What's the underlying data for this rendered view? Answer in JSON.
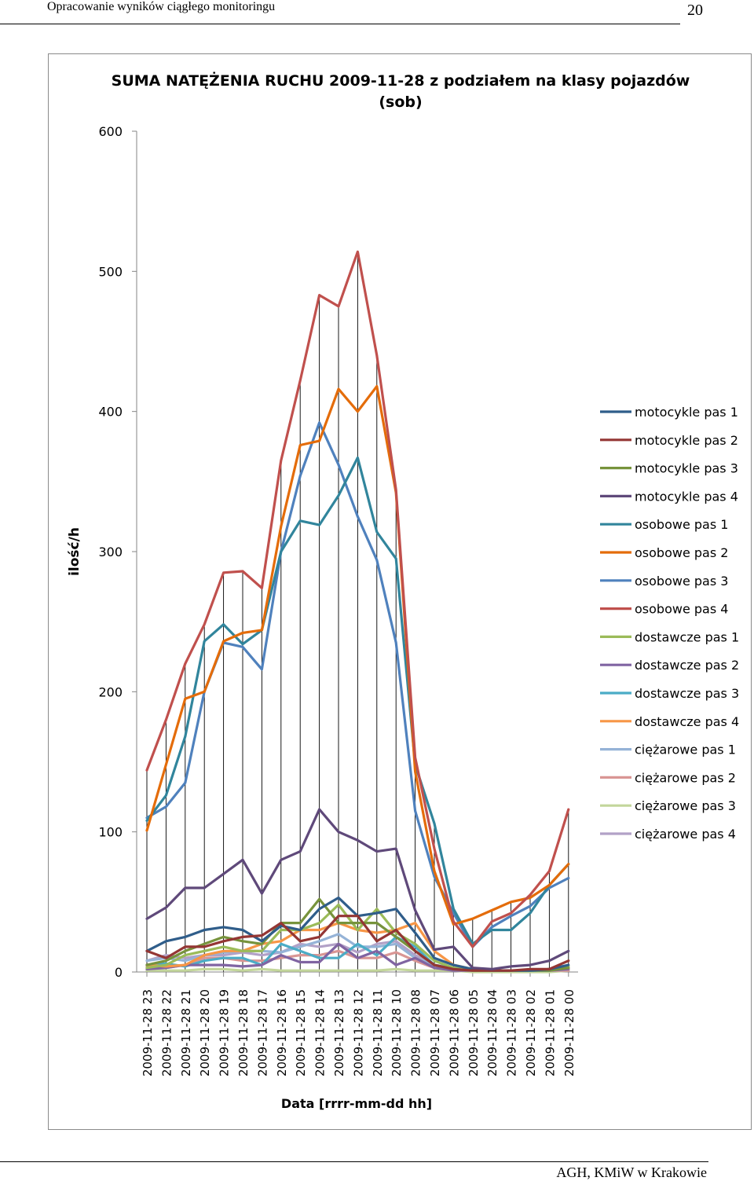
{
  "page": {
    "header_title": "Opracowanie wyników ciągłego monitoringu",
    "page_number": "20",
    "footer": "AGH, KMiW w Krakowie"
  },
  "chart_data": {
    "type": "line",
    "title": "SUMA NATĘŻENIA RUCHU 2009-11-28 z podziałem na klasy pojazdów",
    "subtitle": "(sob)",
    "xlabel": "Data [rrrr-mm-dd hh]",
    "ylabel": "ilość/h",
    "ylim": [
      0,
      600
    ],
    "yticks": [
      0,
      100,
      200,
      300,
      400,
      500,
      600
    ],
    "grid": false,
    "vertical_drop_lines": true,
    "legend_position": "right",
    "categories": [
      "2009-11-28 23",
      "2009-11-28 22",
      "2009-11-28 21",
      "2009-11-28 20",
      "2009-11-28 19",
      "2009-11-28 18",
      "2009-11-28 17",
      "2009-11-28 16",
      "2009-11-28 15",
      "2009-11-28 14",
      "2009-11-28 13",
      "2009-11-28 12",
      "2009-11-28 11",
      "2009-11-28 10",
      "2009-11-28 08",
      "2009-11-28 07",
      "2009-11-28 06",
      "2009-11-28 05",
      "2009-11-28 04",
      "2009-11-28 03",
      "2009-11-28 02",
      "2009-11-28 01",
      "2009-11-28 00"
    ],
    "series": [
      {
        "name": "motocykle pas 1",
        "color": "#2f5d8a",
        "values": [
          15,
          22,
          25,
          30,
          32,
          30,
          22,
          33,
          30,
          45,
          53,
          40,
          42,
          45,
          28,
          10,
          5,
          2,
          1,
          1,
          1,
          2,
          5
        ]
      },
      {
        "name": "motocykle pas 2",
        "color": "#943634",
        "values": [
          15,
          10,
          18,
          18,
          22,
          25,
          26,
          35,
          22,
          25,
          40,
          40,
          22,
          30,
          15,
          5,
          2,
          1,
          1,
          1,
          2,
          2,
          8
        ]
      },
      {
        "name": "motocykle pas 3",
        "color": "#77933c",
        "values": [
          5,
          8,
          15,
          20,
          25,
          22,
          20,
          35,
          35,
          52,
          35,
          35,
          35,
          25,
          15,
          5,
          2,
          1,
          1,
          1,
          1,
          1,
          3
        ]
      },
      {
        "name": "motocykle pas 4",
        "color": "#5f497a",
        "values": [
          38,
          46,
          60,
          60,
          70,
          80,
          56,
          80,
          86,
          116,
          100,
          94,
          86,
          88,
          44,
          16,
          18,
          3,
          2,
          4,
          5,
          8,
          15
        ]
      },
      {
        "name": "osobowe pas 1",
        "color": "#31859c",
        "values": [
          108,
          126,
          168,
          236,
          248,
          234,
          244,
          300,
          322,
          319,
          340,
          367,
          314,
          295,
          148,
          106,
          45,
          20,
          30,
          30,
          42,
          62,
          77
        ]
      },
      {
        "name": "osobowe pas 2",
        "color": "#e46c0a",
        "values": [
          101,
          148,
          195,
          200,
          236,
          242,
          244,
          318,
          376,
          379,
          416,
          400,
          418,
          342,
          143,
          72,
          34,
          38,
          44,
          50,
          53,
          62,
          77
        ]
      },
      {
        "name": "osobowe pas 3",
        "color": "#4f81bd",
        "values": [
          110,
          118,
          135,
          200,
          235,
          232,
          216,
          300,
          354,
          392,
          362,
          325,
          294,
          235,
          115,
          68,
          42,
          18,
          32,
          40,
          47,
          60,
          67
        ]
      },
      {
        "name": "osobowe pas 4",
        "color": "#c0504d",
        "values": [
          144,
          180,
          220,
          248,
          285,
          286,
          274,
          365,
          422,
          483,
          475,
          514,
          440,
          344,
          153,
          88,
          36,
          18,
          36,
          42,
          55,
          72,
          116
        ]
      },
      {
        "name": "dostawcze pas 1",
        "color": "#9bbb59",
        "values": [
          3,
          5,
          12,
          15,
          18,
          15,
          15,
          30,
          30,
          35,
          48,
          30,
          45,
          28,
          20,
          8,
          3,
          1,
          1,
          1,
          1,
          2,
          4
        ]
      },
      {
        "name": "dostawcze pas 2",
        "color": "#8064a2",
        "values": [
          2,
          3,
          5,
          5,
          5,
          4,
          5,
          12,
          7,
          7,
          20,
          10,
          15,
          5,
          10,
          3,
          1,
          1,
          1,
          1,
          1,
          1,
          2
        ]
      },
      {
        "name": "dostawcze pas 3",
        "color": "#4bacc6",
        "values": [
          5,
          6,
          4,
          8,
          10,
          10,
          5,
          20,
          15,
          10,
          10,
          20,
          12,
          25,
          18,
          5,
          2,
          1,
          1,
          1,
          1,
          1,
          3
        ]
      },
      {
        "name": "dostawcze pas 4",
        "color": "#f79646",
        "values": [
          5,
          4,
          5,
          12,
          15,
          15,
          20,
          22,
          30,
          30,
          35,
          30,
          28,
          30,
          35,
          15,
          5,
          2,
          1,
          1,
          1,
          2,
          3
        ]
      },
      {
        "name": "ciężarowe pas 1",
        "color": "#95b3d7",
        "values": [
          8,
          10,
          8,
          12,
          14,
          15,
          15,
          14,
          18,
          22,
          27,
          18,
          18,
          20,
          10,
          5,
          3,
          1,
          1,
          1,
          1,
          1,
          2
        ]
      },
      {
        "name": "ciężarowe pas 2",
        "color": "#d99694",
        "values": [
          4,
          3,
          5,
          10,
          10,
          8,
          8,
          10,
          12,
          12,
          15,
          10,
          10,
          14,
          8,
          3,
          1,
          1,
          1,
          1,
          1,
          1,
          1
        ]
      },
      {
        "name": "ciężarowe pas 3",
        "color": "#c3d69b",
        "values": [
          1,
          1,
          1,
          2,
          2,
          1,
          2,
          1,
          1,
          1,
          1,
          1,
          1,
          2,
          1,
          1,
          1,
          0,
          0,
          0,
          0,
          0,
          1
        ]
      },
      {
        "name": "ciężarowe pas 4",
        "color": "#b2a1c7",
        "values": [
          8,
          12,
          10,
          12,
          12,
          14,
          12,
          14,
          20,
          18,
          20,
          14,
          20,
          22,
          12,
          5,
          3,
          1,
          1,
          1,
          1,
          1,
          2
        ]
      }
    ]
  }
}
